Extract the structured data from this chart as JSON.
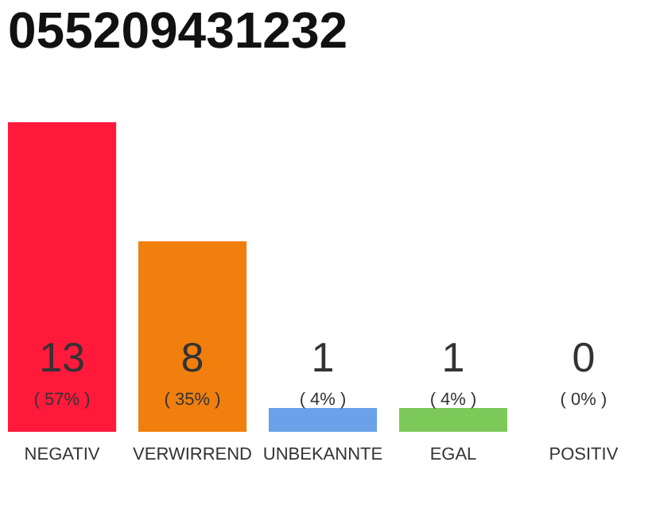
{
  "chart_data": {
    "type": "bar",
    "title": "055209431232",
    "categories": [
      "NEGATIV",
      "VERWIRREND",
      "UNBEKANNTE",
      "EGAL",
      "POSITIV"
    ],
    "values": [
      13,
      8,
      1,
      1,
      0
    ],
    "colors": [
      "#ff1a3c",
      "#f07f0e",
      "#6aa2ea",
      "#7cc95a",
      "#cccccc"
    ],
    "data_labels": true,
    "annotations": [
      "( 57% )",
      "( 35% )",
      "( 4% )",
      "( 4% )",
      "( 0% )"
    ],
    "grid": false
  }
}
